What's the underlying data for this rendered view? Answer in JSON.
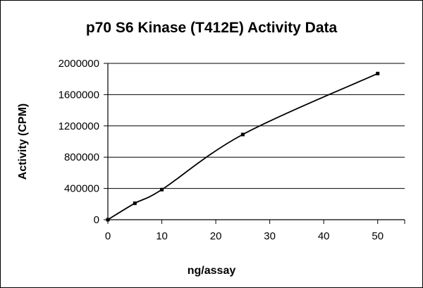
{
  "chart_data": {
    "type": "scatter",
    "title": "p70 S6 Kinase (T412E) Activity Data",
    "xlabel": "ng/assay",
    "ylabel": "Activity (CPM)",
    "xlim": [
      0,
      55
    ],
    "ylim": [
      0,
      2000000
    ],
    "xticks": [
      "0",
      "10",
      "20",
      "30",
      "40",
      "50"
    ],
    "yticks": [
      "0",
      "400000",
      "800000",
      "1200000",
      "1600000",
      "2000000"
    ],
    "grid": "horizontal",
    "legend": "none",
    "series": [
      {
        "points": [
          {
            "x": 0,
            "y": 0
          },
          {
            "x": 5,
            "y": 210000
          },
          {
            "x": 10,
            "y": 385000
          },
          {
            "x": 25,
            "y": 1090000
          },
          {
            "x": 50,
            "y": 1870000
          }
        ],
        "line": "smoothed"
      }
    ]
  }
}
